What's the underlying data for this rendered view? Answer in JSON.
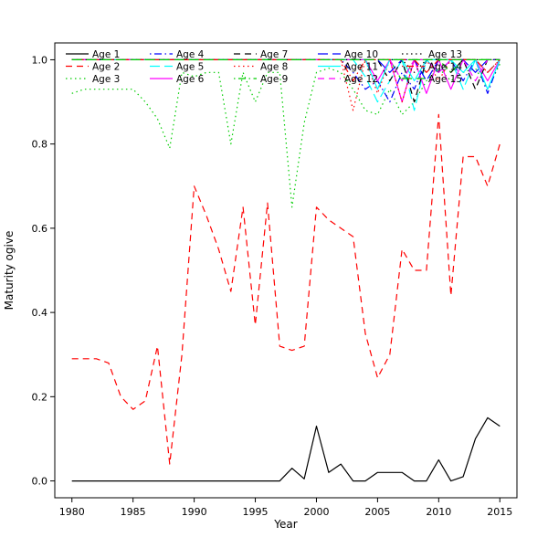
{
  "chart_data": {
    "type": "line",
    "title": "",
    "xlabel": "Year",
    "ylabel": "Maturity ogive",
    "xlim": [
      1978.6,
      2016.4
    ],
    "ylim": [
      -0.04,
      1.04
    ],
    "grid": false,
    "legend_position": "top-left",
    "legend_columns": 5,
    "xticks": [
      1980,
      1985,
      1990,
      1995,
      2000,
      2005,
      2010,
      2015
    ],
    "xtick_labels": [
      "1980",
      "1985",
      "1990",
      "1995",
      "2000",
      "2005",
      "2010",
      "2015"
    ],
    "yticks": [
      0.0,
      0.2,
      0.4,
      0.6,
      0.8,
      1.0
    ],
    "ytick_labels": [
      "0.0",
      "0.2",
      "0.4",
      "0.6",
      "0.8",
      "1.0"
    ],
    "x": [
      1980,
      1981,
      1982,
      1983,
      1984,
      1985,
      1986,
      1987,
      1988,
      1989,
      1990,
      1991,
      1992,
      1993,
      1994,
      1995,
      1996,
      1997,
      1998,
      1999,
      2000,
      2001,
      2002,
      2003,
      2004,
      2005,
      2006,
      2007,
      2008,
      2009,
      2010,
      2011,
      2012,
      2013,
      2014,
      2015
    ],
    "series": [
      {
        "name": "Age 1",
        "color": "#000000",
        "linetype": "solid",
        "values": [
          0,
          0,
          0,
          0,
          0,
          0,
          0,
          0,
          0,
          0,
          0,
          0,
          0,
          0,
          0,
          0,
          0,
          0,
          0.03,
          0.005,
          0.13,
          0.02,
          0.04,
          0,
          0,
          0.02,
          0.02,
          0.02,
          0,
          0,
          0.05,
          0,
          0.01,
          0.1,
          0.15,
          0.13
        ]
      },
      {
        "name": "Age 2",
        "color": "#FF0000",
        "linetype": "dashed",
        "values": [
          0.29,
          0.29,
          0.29,
          0.28,
          0.2,
          0.17,
          0.19,
          0.32,
          0.04,
          0.3,
          0.7,
          0.63,
          0.55,
          0.45,
          0.65,
          0.37,
          0.66,
          0.32,
          0.31,
          0.32,
          0.65,
          0.62,
          0.6,
          0.58,
          0.35,
          0.245,
          0.3,
          0.55,
          0.5,
          0.5,
          0.87,
          0.44,
          0.77,
          0.77,
          0.7,
          0.8
        ]
      },
      {
        "name": "Age 3",
        "color": "#00CD00",
        "linetype": "dotted",
        "values": [
          0.92,
          0.93,
          0.93,
          0.93,
          0.93,
          0.93,
          0.9,
          0.86,
          0.79,
          0.97,
          0.96,
          0.97,
          0.97,
          0.8,
          0.97,
          0.9,
          0.97,
          0.97,
          0.65,
          0.85,
          0.97,
          0.98,
          0.97,
          0.93,
          0.88,
          0.87,
          0.93,
          0.87,
          0.9,
          0.95,
          0.98,
          0.95,
          0.97,
          0.98,
          0.93,
          0.99
        ]
      },
      {
        "name": "Age 4",
        "color": "#0000FF",
        "linetype": "dotdash",
        "values": [
          1,
          1,
          1,
          1,
          1,
          1,
          1,
          1,
          1,
          1,
          1,
          1,
          1,
          1,
          1,
          1,
          1,
          1,
          1,
          1,
          1,
          1,
          1,
          0.97,
          0.93,
          0.95,
          0.9,
          0.97,
          0.93,
          1,
          0.97,
          1,
          0.95,
          1,
          0.92,
          1
        ]
      },
      {
        "name": "Age 5",
        "color": "#00FFFF",
        "linetype": "longdash",
        "values": [
          1,
          1,
          1,
          1,
          1,
          1,
          1,
          1,
          1,
          1,
          1,
          1,
          1,
          1,
          1,
          1,
          1,
          1,
          1,
          1,
          1,
          1,
          1,
          1,
          0.96,
          0.9,
          0.95,
          1,
          0.88,
          1,
          0.97,
          1,
          0.93,
          1,
          0.97,
          1
        ]
      },
      {
        "name": "Age 6",
        "color": "#FF00FF",
        "linetype": "solid",
        "values": [
          1,
          1,
          1,
          1,
          1,
          1,
          1,
          1,
          1,
          1,
          1,
          1,
          1,
          1,
          1,
          1,
          1,
          1,
          1,
          1,
          1,
          1,
          1,
          1,
          1,
          0.95,
          1,
          0.9,
          1,
          0.92,
          1,
          0.93,
          1,
          1,
          0.95,
          1
        ]
      },
      {
        "name": "Age 7",
        "color": "#000000",
        "linetype": "dashed",
        "values": [
          1,
          1,
          1,
          1,
          1,
          1,
          1,
          1,
          1,
          1,
          1,
          1,
          1,
          1,
          1,
          1,
          1,
          1,
          1,
          1,
          1,
          1,
          1,
          1,
          1,
          1,
          0.95,
          1,
          0.9,
          1,
          1,
          0.97,
          1,
          0.93,
          1,
          1
        ]
      },
      {
        "name": "Age 8",
        "color": "#FF0000",
        "linetype": "dotted",
        "values": [
          1,
          1,
          1,
          1,
          1,
          1,
          1,
          1,
          1,
          1,
          1,
          1,
          1,
          1,
          1,
          1,
          1,
          1,
          1,
          1,
          1,
          1,
          1,
          0.88,
          1,
          0.92,
          1,
          0.9,
          1,
          1,
          0.95,
          1,
          1,
          1,
          0.97,
          1
        ]
      },
      {
        "name": "Age 9",
        "color": "#00CD00",
        "linetype": "dotdash",
        "values": [
          1,
          1,
          1,
          1,
          1,
          1,
          1,
          1,
          1,
          1,
          1,
          1,
          1,
          1,
          1,
          1,
          1,
          1,
          1,
          1,
          1,
          1,
          1,
          1,
          1,
          1,
          1,
          0.95,
          1,
          1,
          1,
          0.97,
          1,
          1,
          1,
          1
        ]
      },
      {
        "name": "Age 10",
        "color": "#0000FF",
        "linetype": "longdash",
        "values": [
          1,
          1,
          1,
          1,
          1,
          1,
          1,
          1,
          1,
          1,
          1,
          1,
          1,
          1,
          1,
          1,
          1,
          1,
          1,
          1,
          1,
          1,
          1,
          1,
          1,
          1,
          0.97,
          1,
          1,
          0.95,
          1,
          1,
          1,
          0.97,
          1,
          1
        ]
      },
      {
        "name": "Age 11",
        "color": "#00FFFF",
        "linetype": "solid",
        "values": [
          1,
          1,
          1,
          1,
          1,
          1,
          1,
          1,
          1,
          1,
          1,
          1,
          1,
          1,
          1,
          1,
          1,
          1,
          1,
          1,
          1,
          1,
          1,
          1,
          1,
          0.93,
          1,
          1,
          0.95,
          1,
          1,
          1,
          0.97,
          1,
          0.93,
          1
        ]
      },
      {
        "name": "Age 12",
        "color": "#FF00FF",
        "linetype": "dashed",
        "values": [
          1,
          1,
          1,
          1,
          1,
          1,
          1,
          1,
          1,
          1,
          1,
          1,
          1,
          1,
          1,
          1,
          1,
          1,
          1,
          1,
          1,
          1,
          1,
          1,
          1,
          1,
          1,
          0.95,
          1,
          1,
          0.97,
          1,
          1,
          0.95,
          1,
          1
        ]
      },
      {
        "name": "Age 13",
        "color": "#000000",
        "linetype": "dotted",
        "values": [
          1,
          1,
          1,
          1,
          1,
          1,
          1,
          1,
          1,
          1,
          1,
          1,
          1,
          1,
          1,
          1,
          1,
          1,
          1,
          1,
          1,
          1,
          1,
          1,
          1,
          1,
          1,
          1,
          0.97,
          1,
          1,
          1,
          1,
          1,
          1,
          1
        ]
      },
      {
        "name": "Age 14",
        "color": "#FF0000",
        "linetype": "dotdash",
        "values": [
          1,
          1,
          1,
          1,
          1,
          1,
          1,
          1,
          1,
          1,
          1,
          1,
          1,
          1,
          1,
          1,
          1,
          1,
          1,
          1,
          1,
          1,
          1,
          0.95,
          1,
          1,
          1,
          1,
          1,
          0.97,
          1,
          1,
          1,
          1,
          0.97,
          1
        ]
      },
      {
        "name": "Age 15",
        "color": "#00CD00",
        "linetype": "longdash",
        "values": [
          1,
          1,
          1,
          1,
          1,
          1,
          1,
          1,
          1,
          1,
          1,
          1,
          1,
          1,
          1,
          1,
          1,
          1,
          1,
          1,
          1,
          1,
          1,
          1,
          1,
          1,
          1,
          1,
          1,
          1,
          1,
          1,
          1,
          1,
          1,
          1
        ]
      }
    ]
  }
}
